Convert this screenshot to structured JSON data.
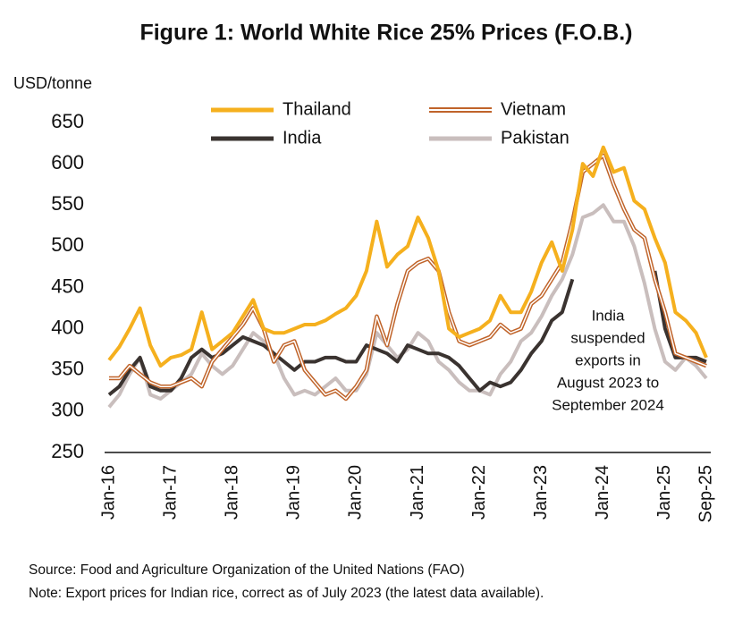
{
  "chart_data": {
    "type": "line",
    "title": "Figure 1: World White Rice 25% Prices (F.O.B.)",
    "y_label": "USD/tonne",
    "categories": [
      "Jan-16",
      null,
      null,
      null,
      null,
      null,
      "Jan-17",
      null,
      null,
      null,
      null,
      null,
      "Jan-18",
      null,
      null,
      null,
      null,
      null,
      "Jan-19",
      null,
      null,
      null,
      null,
      null,
      "Jan-20",
      null,
      null,
      null,
      null,
      null,
      "Jan-21",
      null,
      null,
      null,
      null,
      null,
      "Jan-22",
      null,
      null,
      null,
      null,
      null,
      "Jan-23",
      null,
      null,
      null,
      null,
      null,
      "Jan-24",
      null,
      null,
      null,
      null,
      null,
      "Jan-25",
      null,
      null,
      null,
      "Sep-25"
    ],
    "series": [
      {
        "name": "Thailand",
        "color": "#f5b01e",
        "line_style": "solid",
        "values": [
          362,
          378,
          400,
          425,
          380,
          355,
          365,
          368,
          375,
          420,
          375,
          385,
          395,
          415,
          435,
          400,
          395,
          395,
          400,
          405,
          405,
          410,
          418,
          425,
          440,
          470,
          530,
          475,
          490,
          500,
          535,
          510,
          470,
          400,
          390,
          395,
          400,
          410,
          440,
          420,
          420,
          445,
          480,
          505,
          470,
          520,
          600,
          585,
          620,
          590,
          595,
          555,
          545,
          510,
          480,
          420,
          410,
          395,
          365
        ]
      },
      {
        "name": "Vietnam",
        "color": "#c0642a",
        "line_style": "double",
        "values": [
          340,
          340,
          355,
          345,
          335,
          330,
          330,
          335,
          340,
          330,
          360,
          375,
          390,
          405,
          425,
          400,
          360,
          380,
          385,
          350,
          335,
          320,
          325,
          315,
          330,
          350,
          415,
          380,
          430,
          470,
          480,
          485,
          470,
          420,
          385,
          380,
          385,
          390,
          405,
          395,
          400,
          430,
          440,
          460,
          480,
          530,
          590,
          600,
          610,
          575,
          545,
          520,
          510,
          460,
          420,
          370,
          365,
          360,
          355
        ]
      },
      {
        "name": "India",
        "color": "#3a3330",
        "line_style": "solid",
        "values": [
          320,
          330,
          350,
          365,
          330,
          325,
          325,
          340,
          365,
          375,
          365,
          370,
          380,
          390,
          385,
          380,
          370,
          360,
          350,
          360,
          360,
          365,
          365,
          360,
          360,
          380,
          375,
          370,
          360,
          380,
          375,
          370,
          370,
          365,
          355,
          340,
          325,
          335,
          330,
          335,
          350,
          370,
          385,
          410,
          420,
          460,
          null,
          null,
          null,
          null,
          null,
          null,
          null,
          470,
          400,
          365,
          365,
          365,
          360
        ]
      },
      {
        "name": "Pakistan",
        "color": "#c9bebd",
        "line_style": "solid",
        "values": [
          305,
          320,
          345,
          365,
          320,
          315,
          325,
          335,
          345,
          370,
          355,
          345,
          355,
          375,
          395,
          385,
          370,
          340,
          320,
          325,
          320,
          330,
          340,
          325,
          325,
          345,
          395,
          380,
          365,
          375,
          395,
          385,
          360,
          350,
          335,
          325,
          325,
          320,
          345,
          360,
          385,
          395,
          415,
          440,
          460,
          490,
          535,
          540,
          550,
          530,
          530,
          500,
          455,
          400,
          360,
          350,
          365,
          355,
          340
        ]
      }
    ],
    "ylim": [
      250,
      650
    ],
    "yticks": [
      250,
      300,
      350,
      400,
      450,
      500,
      550,
      600,
      650
    ],
    "annotation": [
      "India",
      "suspended",
      "exports in",
      "August 2023 to",
      "September 2024"
    ],
    "source": "Source: Food and Agriculture Organization of the United Nations (FAO)",
    "note": "Note: Export prices for Indian rice, correct as of July 2023 (the latest data available)."
  }
}
